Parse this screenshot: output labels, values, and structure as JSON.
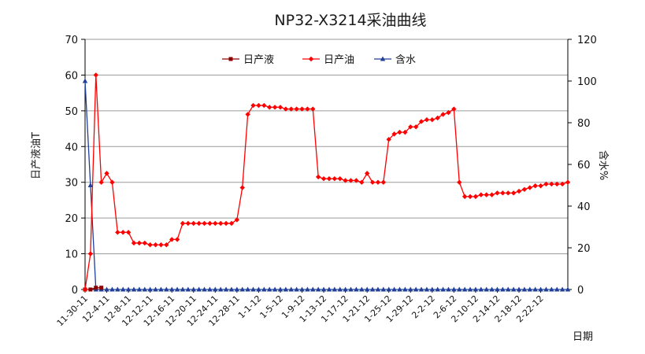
{
  "chart_data": {
    "type": "line",
    "title": "NP32-X3214采油曲线",
    "ylabel_left": "日产液油T",
    "ylabel_right": "含水%",
    "xlabel": "日期",
    "ylim_left": [
      0,
      70
    ],
    "ylim_right": [
      0,
      120
    ],
    "yticks_left": [
      0,
      10,
      20,
      30,
      40,
      50,
      60,
      70
    ],
    "yticks_right": [
      0,
      20,
      40,
      60,
      80,
      100,
      120
    ],
    "grid": true,
    "legend_position": "top-center",
    "x_tick_labels": [
      "11-30-11",
      "12-4-11",
      "12-8-11",
      "12-12-11",
      "12-16-11",
      "12-20-11",
      "12-24-11",
      "12-28-11",
      "1-1-12",
      "1-5-12",
      "1-9-12",
      "1-13-12",
      "1-17-12",
      "1-21-12",
      "1-25-12",
      "1-29-12",
      "2-2-12",
      "2-6-12",
      "2-10-12",
      "2-14-12",
      "2-18-12",
      "2-22-12"
    ],
    "x_day_start": 0,
    "x_day_end": 89,
    "x_tick_step_days": 4,
    "series": [
      {
        "name": "日产液",
        "axis": "left",
        "color": "#8B0000",
        "marker": "square",
        "values": [
          [
            0,
            0
          ],
          [
            1,
            0
          ],
          [
            2,
            0.5
          ],
          [
            3,
            0.5
          ]
        ]
      },
      {
        "name": "日产油",
        "axis": "left",
        "color": "#FF0000",
        "marker": "diamond",
        "values": [
          [
            0,
            0
          ],
          [
            1,
            10
          ],
          [
            2,
            60
          ],
          [
            3,
            30
          ],
          [
            4,
            32.5
          ],
          [
            5,
            30
          ],
          [
            6,
            16
          ],
          [
            7,
            16
          ],
          [
            8,
            16
          ],
          [
            9,
            13
          ],
          [
            10,
            13
          ],
          [
            11,
            13
          ],
          [
            12,
            12.5
          ],
          [
            13,
            12.5
          ],
          [
            14,
            12.5
          ],
          [
            15,
            12.5
          ],
          [
            16,
            14
          ],
          [
            17,
            14
          ],
          [
            18,
            18.5
          ],
          [
            19,
            18.5
          ],
          [
            20,
            18.5
          ],
          [
            21,
            18.5
          ],
          [
            22,
            18.5
          ],
          [
            23,
            18.5
          ],
          [
            24,
            18.5
          ],
          [
            25,
            18.5
          ],
          [
            26,
            18.5
          ],
          [
            27,
            18.5
          ],
          [
            28,
            19.5
          ],
          [
            29,
            28.5
          ],
          [
            30,
            49
          ],
          [
            31,
            51.5
          ],
          [
            32,
            51.5
          ],
          [
            33,
            51.5
          ],
          [
            34,
            51
          ],
          [
            35,
            51
          ],
          [
            36,
            51
          ],
          [
            37,
            50.5
          ],
          [
            38,
            50.5
          ],
          [
            39,
            50.5
          ],
          [
            40,
            50.5
          ],
          [
            41,
            50.5
          ],
          [
            42,
            50.5
          ],
          [
            43,
            31.5
          ],
          [
            44,
            31
          ],
          [
            45,
            31
          ],
          [
            46,
            31
          ],
          [
            47,
            31
          ],
          [
            48,
            30.5
          ],
          [
            49,
            30.5
          ],
          [
            50,
            30.5
          ],
          [
            51,
            30
          ],
          [
            52,
            32.5
          ],
          [
            53,
            30
          ],
          [
            54,
            30
          ],
          [
            55,
            30
          ],
          [
            56,
            42
          ],
          [
            57,
            43.5
          ],
          [
            58,
            44
          ],
          [
            59,
            44
          ],
          [
            60,
            45.5
          ],
          [
            61,
            45.5
          ],
          [
            62,
            47
          ],
          [
            63,
            47.5
          ],
          [
            64,
            47.5
          ],
          [
            65,
            48
          ],
          [
            66,
            49
          ],
          [
            67,
            49.5
          ],
          [
            68,
            50.5
          ],
          [
            69,
            30
          ],
          [
            70,
            26
          ],
          [
            71,
            26
          ],
          [
            72,
            26
          ],
          [
            73,
            26.5
          ],
          [
            74,
            26.5
          ],
          [
            75,
            26.5
          ],
          [
            76,
            27
          ],
          [
            77,
            27
          ],
          [
            78,
            27
          ],
          [
            79,
            27
          ],
          [
            80,
            27.5
          ],
          [
            81,
            28
          ],
          [
            82,
            28.5
          ],
          [
            83,
            29
          ],
          [
            84,
            29
          ],
          [
            85,
            29.5
          ],
          [
            86,
            29.5
          ],
          [
            87,
            29.5
          ],
          [
            88,
            29.5
          ],
          [
            89,
            30
          ]
        ]
      },
      {
        "name": "含水",
        "axis": "right",
        "color": "#1F3F99",
        "marker": "triangle",
        "values": [
          [
            0,
            100
          ],
          [
            1,
            50
          ],
          [
            2,
            0
          ],
          [
            3,
            0
          ],
          [
            4,
            0
          ],
          [
            5,
            0
          ],
          [
            6,
            0
          ],
          [
            7,
            0
          ],
          [
            8,
            0
          ],
          [
            9,
            0
          ],
          [
            10,
            0
          ],
          [
            11,
            0
          ],
          [
            12,
            0
          ],
          [
            13,
            0
          ],
          [
            14,
            0
          ],
          [
            15,
            0
          ],
          [
            16,
            0
          ],
          [
            17,
            0
          ],
          [
            18,
            0
          ],
          [
            19,
            0
          ],
          [
            20,
            0
          ],
          [
            21,
            0
          ],
          [
            22,
            0
          ],
          [
            23,
            0
          ],
          [
            24,
            0
          ],
          [
            25,
            0
          ],
          [
            26,
            0
          ],
          [
            27,
            0
          ],
          [
            28,
            0
          ],
          [
            29,
            0
          ],
          [
            30,
            0
          ],
          [
            31,
            0
          ],
          [
            32,
            0
          ],
          [
            33,
            0
          ],
          [
            34,
            0
          ],
          [
            35,
            0
          ],
          [
            36,
            0
          ],
          [
            37,
            0
          ],
          [
            38,
            0
          ],
          [
            39,
            0
          ],
          [
            40,
            0
          ],
          [
            41,
            0
          ],
          [
            42,
            0
          ],
          [
            43,
            0
          ],
          [
            44,
            0
          ],
          [
            45,
            0
          ],
          [
            46,
            0
          ],
          [
            47,
            0
          ],
          [
            48,
            0
          ],
          [
            49,
            0
          ],
          [
            50,
            0
          ],
          [
            51,
            0
          ],
          [
            52,
            0
          ],
          [
            53,
            0
          ],
          [
            54,
            0
          ],
          [
            55,
            0
          ],
          [
            56,
            0
          ],
          [
            57,
            0
          ],
          [
            58,
            0
          ],
          [
            59,
            0
          ],
          [
            60,
            0
          ],
          [
            61,
            0
          ],
          [
            62,
            0
          ],
          [
            63,
            0
          ],
          [
            64,
            0
          ],
          [
            65,
            0
          ],
          [
            66,
            0
          ],
          [
            67,
            0
          ],
          [
            68,
            0
          ],
          [
            69,
            0
          ],
          [
            70,
            0
          ],
          [
            71,
            0
          ],
          [
            72,
            0
          ],
          [
            73,
            0
          ],
          [
            74,
            0
          ],
          [
            75,
            0
          ],
          [
            76,
            0
          ],
          [
            77,
            0
          ],
          [
            78,
            0
          ],
          [
            79,
            0
          ],
          [
            80,
            0
          ],
          [
            81,
            0
          ],
          [
            82,
            0
          ],
          [
            83,
            0
          ],
          [
            84,
            0
          ],
          [
            85,
            0
          ],
          [
            86,
            0
          ],
          [
            87,
            0
          ],
          [
            88,
            0
          ],
          [
            89,
            0
          ]
        ]
      }
    ]
  }
}
